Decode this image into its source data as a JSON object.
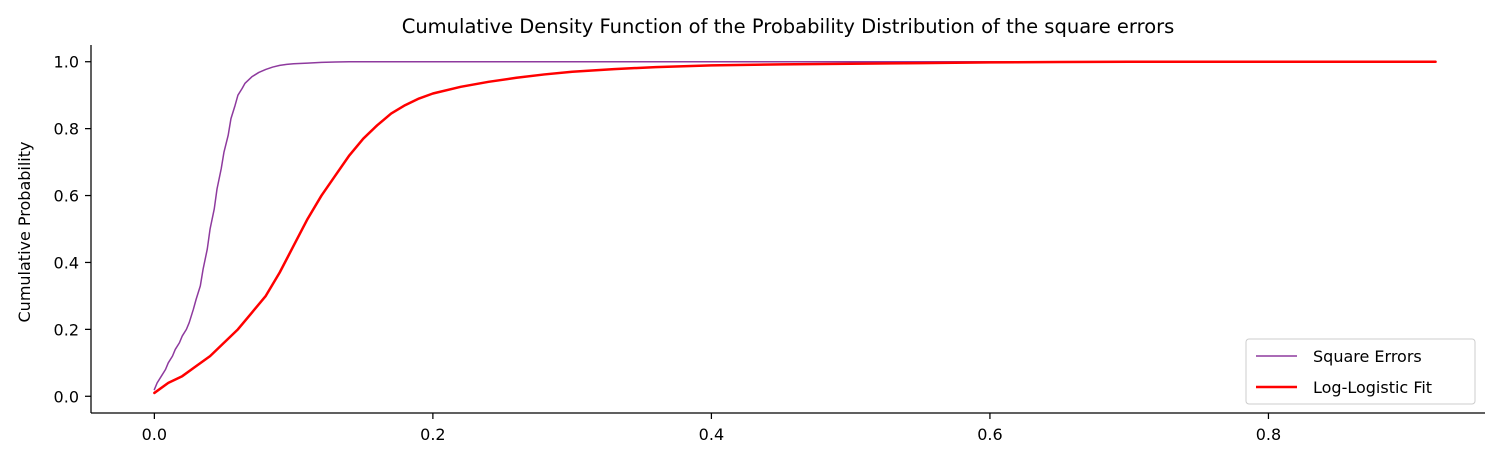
{
  "chart_data": {
    "type": "line",
    "title": "Cumulative Density Function of the Probability Distribution of the square errors",
    "xlabel": "",
    "ylabel": "Cumulative Probability",
    "xlim": [
      -0.0455,
      0.9555
    ],
    "ylim": [
      -0.05,
      1.05
    ],
    "xticks": [
      0.0,
      0.2,
      0.4,
      0.6,
      0.8
    ],
    "xtick_labels": [
      "0.0",
      "0.2",
      "0.4",
      "0.6",
      "0.8"
    ],
    "yticks": [
      0.0,
      0.2,
      0.4,
      0.6,
      0.8,
      1.0
    ],
    "ytick_labels": [
      "0.0",
      "0.2",
      "0.4",
      "0.6",
      "0.8",
      "1.0"
    ],
    "grid": false,
    "legend_position": "lower right",
    "series": [
      {
        "name": "Square Errors",
        "color": "#8e3a9e",
        "x": [
          0.0,
          0.002,
          0.005,
          0.008,
          0.01,
          0.013,
          0.015,
          0.018,
          0.02,
          0.023,
          0.025,
          0.028,
          0.03,
          0.033,
          0.035,
          0.038,
          0.04,
          0.043,
          0.045,
          0.048,
          0.05,
          0.053,
          0.055,
          0.058,
          0.06,
          0.063,
          0.065,
          0.07,
          0.075,
          0.08,
          0.085,
          0.09,
          0.095,
          0.1,
          0.11,
          0.12,
          0.13,
          0.14,
          0.16,
          0.2,
          0.3,
          0.5,
          0.7,
          0.92
        ],
        "y": [
          0.02,
          0.04,
          0.06,
          0.08,
          0.1,
          0.12,
          0.14,
          0.16,
          0.18,
          0.2,
          0.22,
          0.26,
          0.29,
          0.33,
          0.38,
          0.44,
          0.5,
          0.56,
          0.62,
          0.68,
          0.73,
          0.78,
          0.83,
          0.87,
          0.9,
          0.92,
          0.935,
          0.955,
          0.968,
          0.977,
          0.984,
          0.989,
          0.992,
          0.994,
          0.996,
          0.998,
          0.999,
          1.0,
          1.0,
          1.0,
          1.0,
          1.0,
          1.0,
          1.0
        ]
      },
      {
        "name": "Log-Logistic Fit",
        "color": "#ff0000",
        "x": [
          0.0,
          0.01,
          0.02,
          0.03,
          0.04,
          0.05,
          0.06,
          0.07,
          0.08,
          0.09,
          0.1,
          0.11,
          0.12,
          0.13,
          0.14,
          0.15,
          0.16,
          0.17,
          0.18,
          0.19,
          0.2,
          0.22,
          0.24,
          0.26,
          0.28,
          0.3,
          0.33,
          0.36,
          0.4,
          0.45,
          0.5,
          0.55,
          0.6,
          0.65,
          0.7,
          0.8,
          0.92
        ],
        "y": [
          0.01,
          0.04,
          0.06,
          0.09,
          0.12,
          0.16,
          0.2,
          0.25,
          0.3,
          0.37,
          0.45,
          0.53,
          0.6,
          0.66,
          0.72,
          0.77,
          0.81,
          0.845,
          0.87,
          0.89,
          0.905,
          0.925,
          0.94,
          0.952,
          0.962,
          0.97,
          0.978,
          0.984,
          0.989,
          0.992,
          0.994,
          0.996,
          0.998,
          0.999,
          1.0,
          1.0,
          1.0
        ]
      }
    ]
  }
}
